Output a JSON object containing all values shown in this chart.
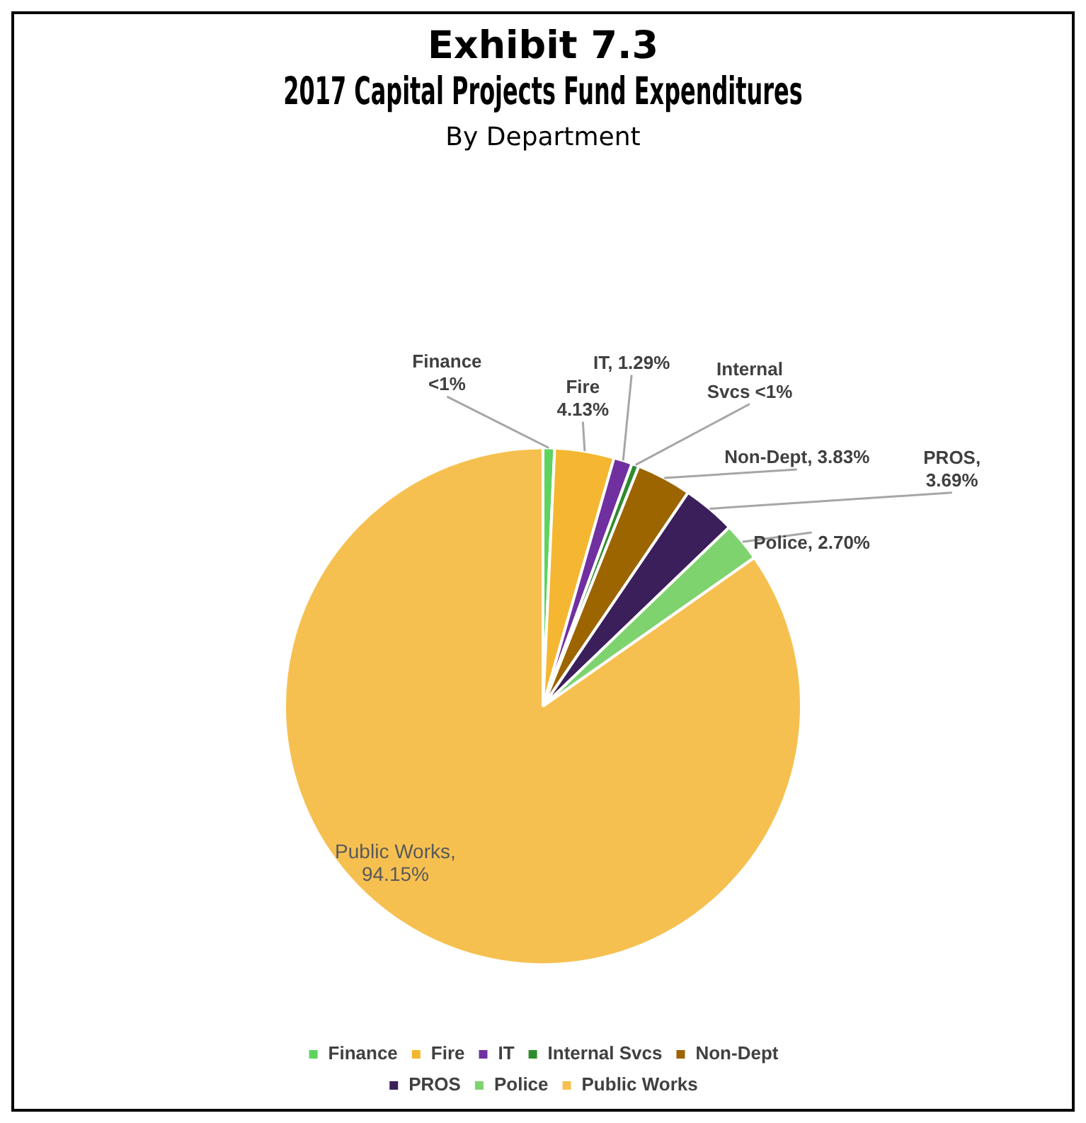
{
  "chart_data": {
    "type": "pie",
    "title": "Exhibit 7.3\n2017 Capital Projects Fund Expenditures",
    "subtitle": "By Department",
    "categories": [
      "Finance",
      "Fire",
      "IT",
      "Internal Svcs",
      "Non-Dept",
      "PROS",
      "Police",
      "Public Works"
    ],
    "values": [
      0.8,
      4.13,
      1.29,
      0.5,
      3.83,
      3.69,
      2.7,
      94.15
    ],
    "value_labels": [
      "Finance <1%",
      "Fire 4.13%",
      "IT, 1.29%",
      "Internal Svcs <1%",
      "Non-Dept, 3.83%",
      "PROS, 3.69%",
      "Police, 2.70%",
      "Public Works, 94.15%"
    ],
    "colors": [
      "#5fd35f",
      "#f5b731",
      "#7030a0",
      "#2e8b2e",
      "#9c6500",
      "#3b1f5b",
      "#7ed36e",
      "#f6c050"
    ],
    "legend": "bottom"
  }
}
